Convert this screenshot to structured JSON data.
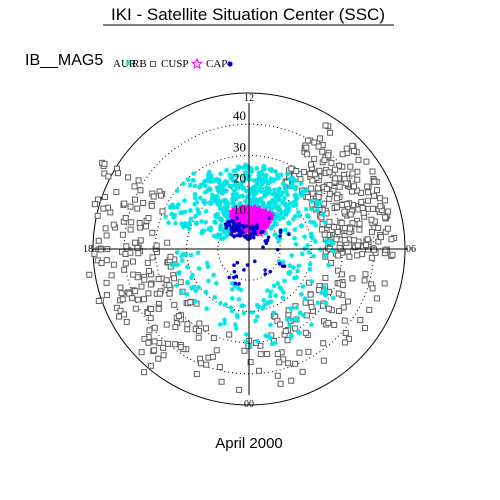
{
  "page": {
    "title": "IKI - Satellite Situation Center (SSC)",
    "dataset_label": "IB__MAG5",
    "date_label": "April 2000"
  },
  "chart_data": {
    "type": "scatter",
    "coordinate_system": "polar-magnetic-local-time",
    "radial_ticks": [
      "10",
      "20",
      "30",
      "40"
    ],
    "radial_values": [
      10,
      20,
      30,
      40
    ],
    "radial_max": 50,
    "mlt_labels": [
      {
        "hour": 12,
        "text": "12"
      },
      {
        "hour": 18,
        "text": "18"
      },
      {
        "hour": 6,
        "text": "06"
      },
      {
        "hour": 0,
        "text": "00"
      }
    ],
    "grid": "dotted-circles",
    "legend_position": "top",
    "legend": [
      {
        "key": "aur",
        "text": "AUR",
        "marker": "asterisk",
        "color": "#00e5e5"
      },
      {
        "key": "rb",
        "text": "RB",
        "marker": "square",
        "color": "#606060"
      },
      {
        "key": "cusp",
        "text": "CUSP",
        "marker": "star",
        "color": "#ff00ff"
      },
      {
        "key": "cap",
        "text": "CAP",
        "marker": "dot",
        "color": "#0000cc"
      }
    ],
    "series": [
      {
        "name": "RB",
        "marker": "square",
        "color": "#606060",
        "regions": [
          {
            "mlt": [
              13.8,
              18.2
            ],
            "colat": [
              24,
              47
            ],
            "n": 260,
            "seed": 11
          },
          {
            "mlt": [
              18.2,
              23.2
            ],
            "colat": [
              22,
              45
            ],
            "n": 85,
            "seed": 12
          },
          {
            "mlt": [
              23.2,
              2.3
            ],
            "colat": [
              28,
              46
            ],
            "n": 28,
            "seed": 13
          },
          {
            "mlt": [
              2.3,
              6.6
            ],
            "colat": [
              24,
              52
            ],
            "n": 130,
            "seed": 14
          },
          {
            "mlt": [
              6.6,
              8.2
            ],
            "colat": [
              30,
              55
            ],
            "n": 45,
            "seed": 15
          }
        ]
      },
      {
        "name": "AUR",
        "marker": "asterisk",
        "color": "#00e5e5",
        "regions": [
          {
            "mlt": [
              9.6,
              15.2
            ],
            "colat": [
              7,
              27
            ],
            "n": 430,
            "seed": 21
          },
          {
            "mlt": [
              7.2,
              10.2
            ],
            "colat": [
              8,
              30
            ],
            "n": 110,
            "seed": 22
          },
          {
            "mlt": [
              15.5,
              19.5
            ],
            "colat": [
              9,
              28
            ],
            "n": 60,
            "seed": 23
          },
          {
            "mlt": [
              19.5,
              0.5
            ],
            "colat": [
              14,
              32
            ],
            "n": 70,
            "seed": 24
          },
          {
            "mlt": [
              0.5,
              6.0
            ],
            "colat": [
              12,
              26
            ],
            "n": 55,
            "seed": 25
          }
        ]
      },
      {
        "name": "CUSP",
        "marker": "star",
        "color": "#ff00ff",
        "regions": [
          {
            "mlt": [
              10.2,
              14.3
            ],
            "colat": [
              6,
              13
            ],
            "n": 280,
            "seed": 31
          }
        ]
      },
      {
        "name": "CAP",
        "marker": "dot",
        "color": "#0000cc",
        "regions": [
          {
            "mlt": [
              8.6,
              10.6
            ],
            "colat": [
              5,
              11
            ],
            "n": 40,
            "seed": 41
          },
          {
            "mlt": [
              10.6,
              13.6
            ],
            "colat": [
              3,
              8
            ],
            "n": 30,
            "seed": 42
          },
          {
            "mlt": [
              13.8,
              23.5
            ],
            "colat": [
              4,
              14
            ],
            "n": 20,
            "seed": 43
          },
          {
            "mlt": [
              0.2,
              3.0
            ],
            "colat": [
              5,
              12
            ],
            "n": 10,
            "seed": 44
          }
        ]
      }
    ]
  }
}
